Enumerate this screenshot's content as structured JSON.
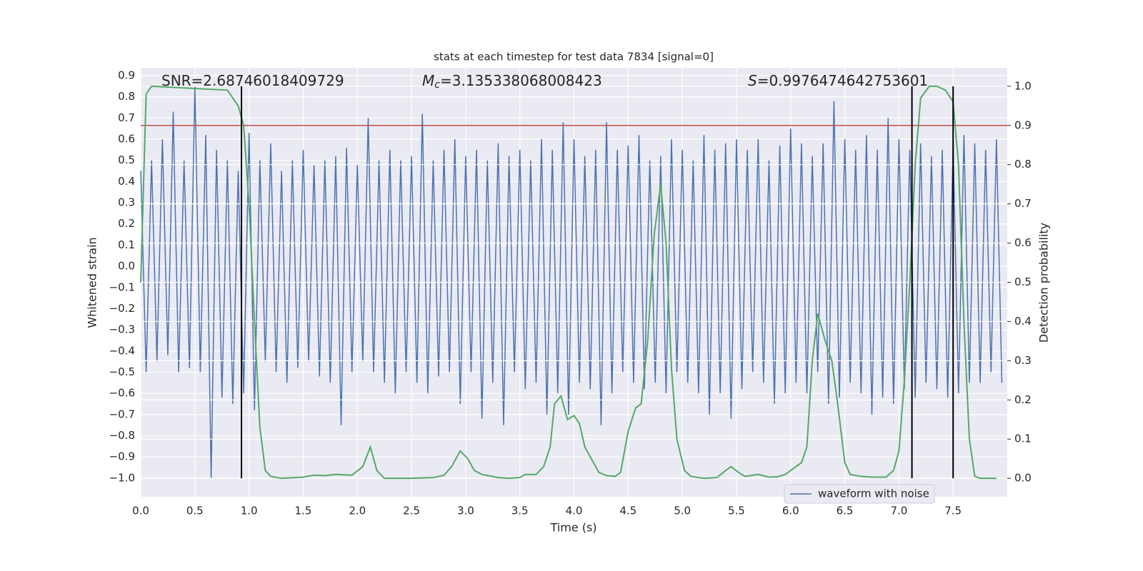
{
  "chart_data": {
    "type": "line",
    "title": "stats at each timestep for test data 7834 [signal=0]",
    "xlabel": "Time (s)",
    "ylabel": "Whitened strain",
    "y2label": "Detection probability",
    "xlim": [
      0,
      8.0
    ],
    "ylim": [
      -1.088,
      0.937
    ],
    "y2lim": [
      -0.047,
      1.047
    ],
    "xticks": [
      {
        "value": 0,
        "label": "0.0"
      },
      {
        "value": 0.5,
        "label": "0.5"
      },
      {
        "value": 1,
        "label": "1.0"
      },
      {
        "value": 1.5,
        "label": "1.5"
      },
      {
        "value": 2,
        "label": "2.0"
      },
      {
        "value": 2.5,
        "label": "2.5"
      },
      {
        "value": 3,
        "label": "3.0"
      },
      {
        "value": 3.5,
        "label": "3.5"
      },
      {
        "value": 4,
        "label": "4.0"
      },
      {
        "value": 4.5,
        "label": "4.5"
      },
      {
        "value": 5,
        "label": "5.0"
      },
      {
        "value": 5.5,
        "label": "5.5"
      },
      {
        "value": 6,
        "label": "6.0"
      },
      {
        "value": 6.5,
        "label": "6.5"
      },
      {
        "value": 7,
        "label": "7.0"
      },
      {
        "value": 7.5,
        "label": "7.5"
      }
    ],
    "yticks": [
      {
        "value": -1.0,
        "label": "−1.0"
      },
      {
        "value": -0.9,
        "label": "−0.9"
      },
      {
        "value": -0.8,
        "label": "−0.8"
      },
      {
        "value": -0.7,
        "label": "−0.7"
      },
      {
        "value": -0.6,
        "label": "−0.6"
      },
      {
        "value": -0.5,
        "label": "−0.5"
      },
      {
        "value": -0.4,
        "label": "−0.4"
      },
      {
        "value": -0.3,
        "label": "−0.3"
      },
      {
        "value": -0.2,
        "label": "−0.2"
      },
      {
        "value": -0.1,
        "label": "−0.1"
      },
      {
        "value": 0,
        "label": "0.0"
      },
      {
        "value": 0.1,
        "label": "0.1"
      },
      {
        "value": 0.2,
        "label": "0.2"
      },
      {
        "value": 0.3,
        "label": "0.3"
      },
      {
        "value": 0.4,
        "label": "0.4"
      },
      {
        "value": 0.5,
        "label": "0.5"
      },
      {
        "value": 0.6,
        "label": "0.6"
      },
      {
        "value": 0.7,
        "label": "0.7"
      },
      {
        "value": 0.8,
        "label": "0.8"
      },
      {
        "value": 0.9,
        "label": "0.9"
      }
    ],
    "y2ticks": [
      {
        "value": 0,
        "label": "0.0"
      },
      {
        "value": 0.1,
        "label": "0.1"
      },
      {
        "value": 0.2,
        "label": "0.2"
      },
      {
        "value": 0.3,
        "label": "0.3"
      },
      {
        "value": 0.4,
        "label": "0.4"
      },
      {
        "value": 0.5,
        "label": "0.5"
      },
      {
        "value": 0.6,
        "label": "0.6"
      },
      {
        "value": 0.7,
        "label": "0.7"
      },
      {
        "value": 0.8,
        "label": "0.8"
      },
      {
        "value": 0.9,
        "label": "0.9"
      },
      {
        "value": 1,
        "label": "1.0"
      }
    ],
    "grid": true,
    "legend": "lower right",
    "series": [
      {
        "name": "waveform with noise",
        "color": "#4c72b0",
        "x": [
          0,
          0.05,
          0.1,
          0.15,
          0.2,
          0.25,
          0.3,
          0.35,
          0.4,
          0.45,
          0.5,
          0.55,
          0.6,
          0.65,
          0.7,
          0.75,
          0.8,
          0.85,
          0.9,
          0.95,
          1,
          1.05,
          1.1,
          1.15,
          1.2,
          1.25,
          1.3,
          1.35,
          1.4,
          1.45,
          1.5,
          1.55,
          1.6,
          1.65,
          1.7,
          1.75,
          1.8,
          1.85,
          1.9,
          1.95,
          2,
          2.05,
          2.1,
          2.15,
          2.2,
          2.25,
          2.3,
          2.35,
          2.4,
          2.45,
          2.5,
          2.55,
          2.6,
          2.65,
          2.7,
          2.75,
          2.8,
          2.85,
          2.9,
          2.95,
          3,
          3.05,
          3.1,
          3.15,
          3.2,
          3.25,
          3.3,
          3.35,
          3.4,
          3.45,
          3.5,
          3.55,
          3.6,
          3.65,
          3.7,
          3.75,
          3.8,
          3.85,
          3.9,
          3.95,
          4,
          4.05,
          4.1,
          4.15,
          4.2,
          4.25,
          4.3,
          4.35,
          4.4,
          4.45,
          4.5,
          4.55,
          4.6,
          4.65,
          4.7,
          4.75,
          4.8,
          4.85,
          4.9,
          4.95,
          5,
          5.05,
          5.1,
          5.15,
          5.2,
          5.25,
          5.3,
          5.35,
          5.4,
          5.45,
          5.5,
          5.55,
          5.6,
          5.65,
          5.7,
          5.75,
          5.8,
          5.85,
          5.9,
          5.95,
          6,
          6.05,
          6.1,
          6.15,
          6.2,
          6.25,
          6.3,
          6.35,
          6.4,
          6.45,
          6.5,
          6.55,
          6.6,
          6.65,
          6.7,
          6.75,
          6.8,
          6.85,
          6.9,
          6.95,
          7,
          7.05,
          7.1,
          7.15,
          7.2,
          7.25,
          7.3,
          7.35,
          7.4,
          7.45,
          7.5,
          7.55,
          7.6,
          7.65,
          7.7,
          7.75,
          7.8,
          7.85,
          7.9,
          7.95
        ],
        "values": [
          0.45,
          -0.5,
          0.5,
          -0.45,
          0.6,
          -0.42,
          0.73,
          -0.5,
          0.5,
          -0.48,
          0.85,
          -0.5,
          0.62,
          -1.0,
          0.55,
          -0.62,
          0.5,
          -0.65,
          0.45,
          -0.6,
          0.63,
          -0.68,
          0.5,
          -0.45,
          0.58,
          -0.5,
          0.45,
          -0.55,
          0.5,
          -0.48,
          0.55,
          -0.45,
          0.48,
          -0.52,
          0.5,
          -0.55,
          0.52,
          -0.75,
          0.56,
          -0.5,
          0.48,
          -0.45,
          0.7,
          -0.5,
          0.5,
          -0.55,
          0.55,
          -0.6,
          0.5,
          -0.5,
          0.52,
          -0.55,
          0.72,
          -0.6,
          0.5,
          -0.52,
          0.55,
          -0.5,
          0.6,
          -0.65,
          0.52,
          -0.5,
          0.55,
          -0.72,
          0.5,
          -0.55,
          0.58,
          -0.75,
          0.52,
          -0.5,
          0.55,
          -0.58,
          0.5,
          -0.55,
          0.6,
          -0.7,
          0.55,
          -0.6,
          0.68,
          -0.7,
          0.6,
          -0.55,
          0.52,
          -0.58,
          0.55,
          -0.75,
          0.68,
          -0.6,
          0.55,
          -0.5,
          0.57,
          -0.55,
          0.62,
          -0.58,
          0.5,
          -0.55,
          0.52,
          -0.6,
          0.6,
          -0.5,
          0.55,
          -0.55,
          0.5,
          -0.6,
          0.62,
          -0.7,
          0.55,
          -0.6,
          0.58,
          -0.72,
          0.6,
          -0.58,
          0.55,
          -0.5,
          0.6,
          -0.55,
          0.5,
          -0.65,
          0.57,
          -0.6,
          0.65,
          -0.55,
          0.58,
          -0.6,
          0.52,
          -0.5,
          0.58,
          -0.65,
          0.78,
          -0.62,
          0.6,
          -0.55,
          0.55,
          -0.6,
          0.62,
          -0.7,
          0.55,
          -0.62,
          0.7,
          -0.65,
          0.6,
          -0.58,
          0.55,
          -0.62,
          0.58,
          -0.55,
          0.52,
          -0.58,
          0.55,
          -0.62,
          0.58,
          -0.6,
          0.62,
          -0.55,
          0.58,
          -0.55,
          0.55,
          -0.5,
          0.6,
          -0.55
        ]
      },
      {
        "color": "#55a868",
        "axis": "y2",
        "x": [
          0,
          0.05,
          0.1,
          0.8,
          0.85,
          0.9,
          0.95,
          1.0,
          1.05,
          1.1,
          1.15,
          1.2,
          1.3,
          1.5,
          1.6,
          1.7,
          1.8,
          1.95,
          2.05,
          2.12,
          2.18,
          2.25,
          2.35,
          2.5,
          2.7,
          2.8,
          2.87,
          2.95,
          3.02,
          3.08,
          3.15,
          3.3,
          3.4,
          3.5,
          3.55,
          3.65,
          3.72,
          3.78,
          3.82,
          3.88,
          3.94,
          4.0,
          4.05,
          4.1,
          4.18,
          4.23,
          4.3,
          4.38,
          4.43,
          4.5,
          4.57,
          4.62,
          4.68,
          4.74,
          4.8,
          4.85,
          4.9,
          4.95,
          5.02,
          5.08,
          5.2,
          5.32,
          5.4,
          5.45,
          5.52,
          5.58,
          5.7,
          5.8,
          5.88,
          5.95,
          6.0,
          6.1,
          6.15,
          6.2,
          6.25,
          6.32,
          6.38,
          6.43,
          6.5,
          6.55,
          6.65,
          6.75,
          6.88,
          6.95,
          7.0,
          7.05,
          7.1,
          7.15,
          7.2,
          7.28,
          7.35,
          7.43,
          7.5,
          7.55,
          7.6,
          7.65,
          7.7,
          7.75,
          7.82,
          7.9
        ],
        "values": [
          0.5,
          0.98,
          1.0,
          0.99,
          0.97,
          0.95,
          0.9,
          0.7,
          0.4,
          0.13,
          0.02,
          0.005,
          0.0,
          0.003,
          0.008,
          0.007,
          0.01,
          0.008,
          0.03,
          0.08,
          0.02,
          0.0,
          0.0,
          0.0,
          0.002,
          0.008,
          0.03,
          0.07,
          0.05,
          0.02,
          0.01,
          0.002,
          0.0,
          0.002,
          0.01,
          0.01,
          0.03,
          0.08,
          0.19,
          0.21,
          0.15,
          0.16,
          0.14,
          0.08,
          0.04,
          0.015,
          0.007,
          0.005,
          0.015,
          0.12,
          0.18,
          0.19,
          0.35,
          0.62,
          0.75,
          0.6,
          0.28,
          0.1,
          0.02,
          0.005,
          0.0,
          0.002,
          0.02,
          0.03,
          0.015,
          0.005,
          0.01,
          0.003,
          0.004,
          0.01,
          0.02,
          0.04,
          0.08,
          0.3,
          0.42,
          0.35,
          0.3,
          0.2,
          0.04,
          0.01,
          0.005,
          0.003,
          0.003,
          0.02,
          0.07,
          0.25,
          0.5,
          0.8,
          0.97,
          1.0,
          1.0,
          0.99,
          0.96,
          0.8,
          0.4,
          0.1,
          0.005,
          0.0,
          0.0,
          0.0
        ]
      }
    ],
    "threshold": {
      "value": 0.9,
      "axis": "y2",
      "color": "#c44e52"
    },
    "vlines": {
      "x": [
        0.93,
        7.12,
        7.5
      ],
      "y2range": [
        0,
        1.0
      ],
      "color": "#000000"
    },
    "annotations": [
      {
        "text": "SNR=2.68746018409729"
      },
      {
        "symbol": "M",
        "subscript": "c",
        "text": "=3.135338068008423"
      },
      {
        "symbol": "S",
        "text": "=0.9976474642753601"
      }
    ]
  }
}
